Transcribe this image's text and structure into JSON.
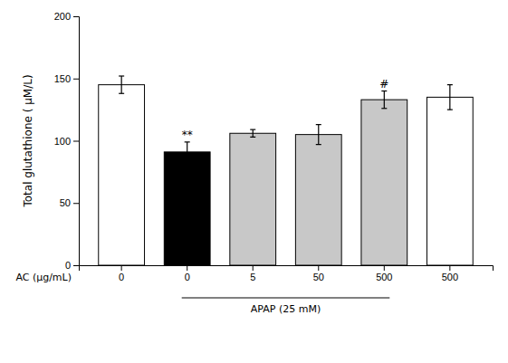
{
  "chart_data": {
    "type": "bar",
    "categories": [
      "0",
      "0",
      "5",
      "50",
      "500",
      "500"
    ],
    "values": [
      145,
      91,
      106,
      105,
      133,
      135
    ],
    "errors": [
      7,
      8,
      3,
      8,
      7,
      10
    ],
    "colors": [
      "#ffffff",
      "#000000",
      "#c8c8c8",
      "#c8c8c8",
      "#c8c8c8",
      "#ffffff"
    ],
    "xlabel": "AC (μg/mL)",
    "ylabel": "Total glutathione ( μM/L)",
    "ylim": [
      0,
      200
    ],
    "yticks": [
      0,
      50,
      100,
      150,
      200
    ],
    "grid": false,
    "annotations": [
      {
        "text": "**",
        "index": 1
      },
      {
        "text": "#",
        "index": 4
      },
      {
        "text": "APAP (25 mM)",
        "from": 1,
        "to": 4
      }
    ]
  }
}
